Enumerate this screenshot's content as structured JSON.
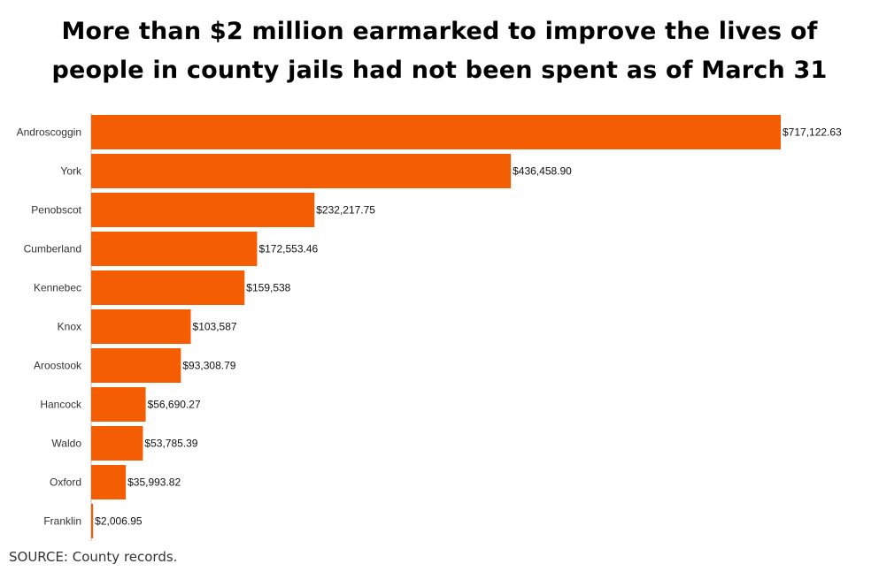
{
  "chart_data": {
    "type": "bar",
    "orientation": "horizontal",
    "title_lines": [
      "More than $2 million earmarked to improve the lives of",
      "people in county jails had not been spent as of March 31"
    ],
    "categories": [
      "Androscoggin",
      "York",
      "Penobscot",
      "Cumberland",
      "Kennebec",
      "Knox",
      "Aroostook",
      "Hancock",
      "Waldo",
      "Oxford",
      "Franklin"
    ],
    "values": [
      717122.63,
      436458.9,
      232217.75,
      172553.46,
      159538,
      103587,
      93308.79,
      56690.27,
      53785.39,
      35993.82,
      2006.95
    ],
    "value_labels": [
      "$717,122.63",
      "$436,458.90",
      "$232,217.75",
      "$172,553.46",
      "$159,538",
      "$103,587",
      "$93,308.79",
      "$56,690.27",
      "$53,785.39",
      "$35,993.82",
      "$2,006.95"
    ],
    "xlim": [
      0,
      717122.63
    ],
    "grid": false,
    "legend": "none",
    "bar_color": "#f45d01",
    "axis_color": "#bbbbbb"
  },
  "source_note": "SOURCE: County records."
}
